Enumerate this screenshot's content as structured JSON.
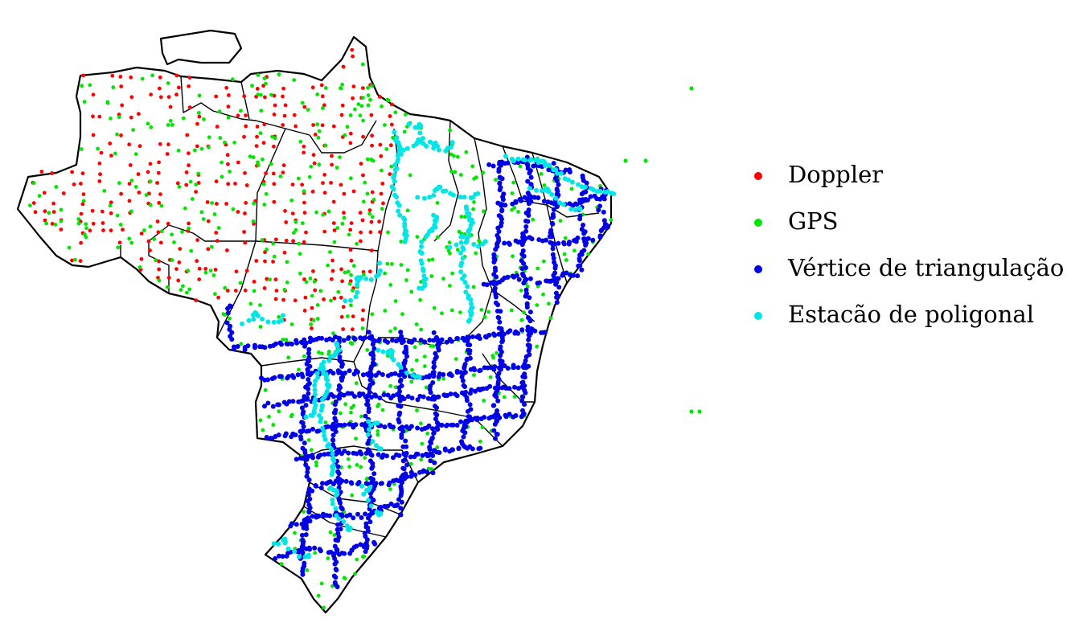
{
  "map": {
    "colors": {
      "Doppler": "#ff0000",
      "GPS": "#00e600",
      "Vertice": "#0000e6",
      "Poligonal": "#00e6e6",
      "border": "#000000"
    }
  },
  "legend": {
    "items": [
      {
        "label": "Doppler",
        "color": "#ff0000"
      },
      {
        "label": "GPS",
        "color": "#00e600"
      },
      {
        "label": "Vértice de triangulação",
        "color": "#0000e6"
      },
      {
        "label": "Estacão de poligonal",
        "color": "#00e6e6"
      }
    ]
  }
}
